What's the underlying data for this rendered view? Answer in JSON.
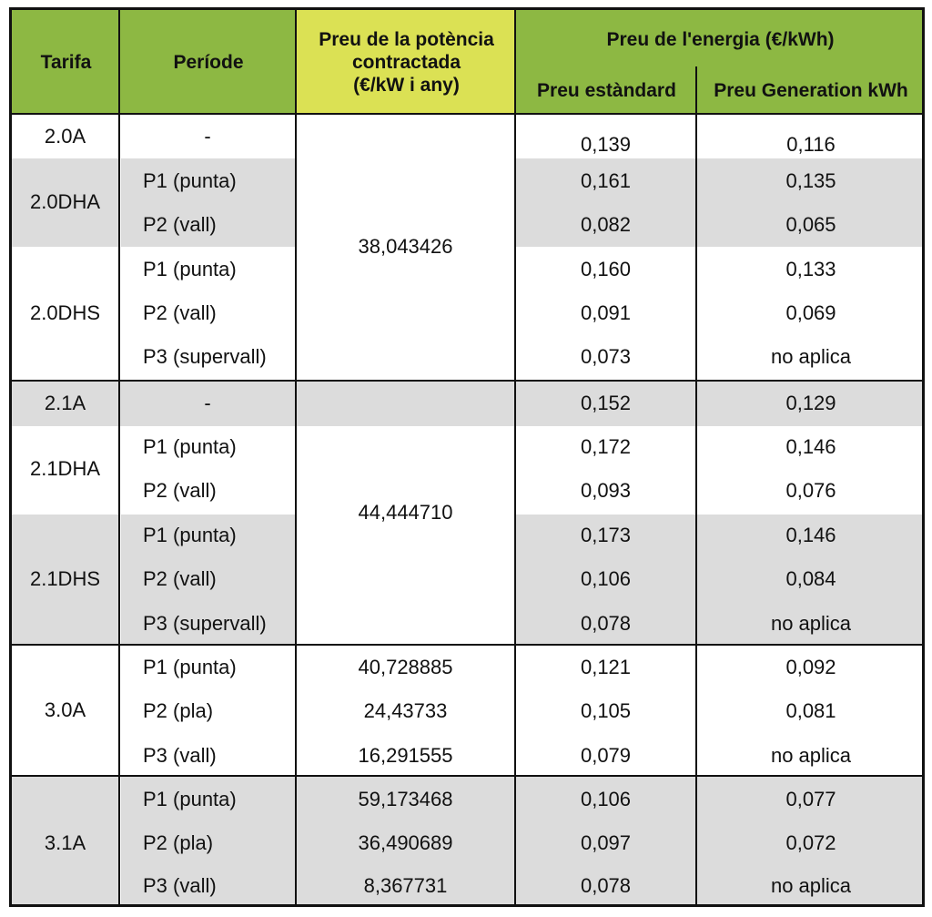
{
  "header": {
    "tarifa": "Tarifa",
    "periode": "Període",
    "potencia": [
      "Preu de la potència",
      "contractada",
      "(€/kW i any)"
    ],
    "energia": "Preu de l'energia (€/kWh)",
    "estandard": "Preu estàndard",
    "generation": "Preu Generation kWh"
  },
  "tariffs": [
    {
      "name": "2.0A",
      "rows": [
        {
          "periode": "-",
          "estandard": "0,139",
          "generation": "0,116"
        }
      ]
    },
    {
      "name": "2.0DHA",
      "rows": [
        {
          "periode": "P1 (punta)",
          "estandard": "0,161",
          "generation": "0,135"
        },
        {
          "periode": "P2 (vall)",
          "estandard": "0,082",
          "generation": "0,065"
        }
      ]
    },
    {
      "name": "2.0DHS",
      "rows": [
        {
          "periode": "P1 (punta)",
          "estandard": "0,160",
          "generation": "0,133"
        },
        {
          "periode": "P2 (vall)",
          "estandard": "0,091",
          "generation": "0,069"
        },
        {
          "periode": "P3 (supervall)",
          "estandard": "0,073",
          "generation": "no aplica"
        }
      ]
    },
    {
      "name": "2.1A",
      "rows": [
        {
          "periode": "-",
          "estandard": "0,152",
          "generation": "0,129"
        }
      ]
    },
    {
      "name": "2.1DHA",
      "rows": [
        {
          "periode": "P1 (punta)",
          "estandard": "0,172",
          "generation": "0,146"
        },
        {
          "periode": "P2 (vall)",
          "estandard": "0,093",
          "generation": "0,076"
        }
      ]
    },
    {
      "name": "2.1DHS",
      "rows": [
        {
          "periode": "P1 (punta)",
          "estandard": "0,173",
          "generation": "0,146"
        },
        {
          "periode": "P2 (vall)",
          "estandard": "0,106",
          "generation": "0,084"
        },
        {
          "periode": "P3 (supervall)",
          "estandard": "0,078",
          "generation": "no aplica"
        }
      ]
    },
    {
      "name": "3.0A",
      "rows": [
        {
          "periode": "P1 (punta)",
          "potencia": "40,728885",
          "estandard": "0,121",
          "generation": "0,092"
        },
        {
          "periode": "P2 (pla)",
          "potencia": "24,43733",
          "estandard": "0,105",
          "generation": "0,081"
        },
        {
          "periode": "P3 (vall)",
          "potencia": "16,291555",
          "estandard": "0,079",
          "generation": "no aplica"
        }
      ]
    },
    {
      "name": "3.1A",
      "rows": [
        {
          "periode": "P1 (punta)",
          "potencia": "59,173468",
          "estandard": "0,106",
          "generation": "0,077"
        },
        {
          "periode": "P2 (pla)",
          "potencia": "36,490689",
          "estandard": "0,097",
          "generation": "0,072"
        },
        {
          "periode": "P3 (vall)",
          "potencia": "8,367731",
          "estandard": "0,078",
          "generation": "no aplica"
        }
      ]
    }
  ],
  "shared_potencia": {
    "group_2_0": "38,043426",
    "group_2_1": "44,444710"
  },
  "colors": {
    "header_green": "#8db843",
    "header_yellow": "#dbe154",
    "row_gray": "#dcdcdc"
  }
}
